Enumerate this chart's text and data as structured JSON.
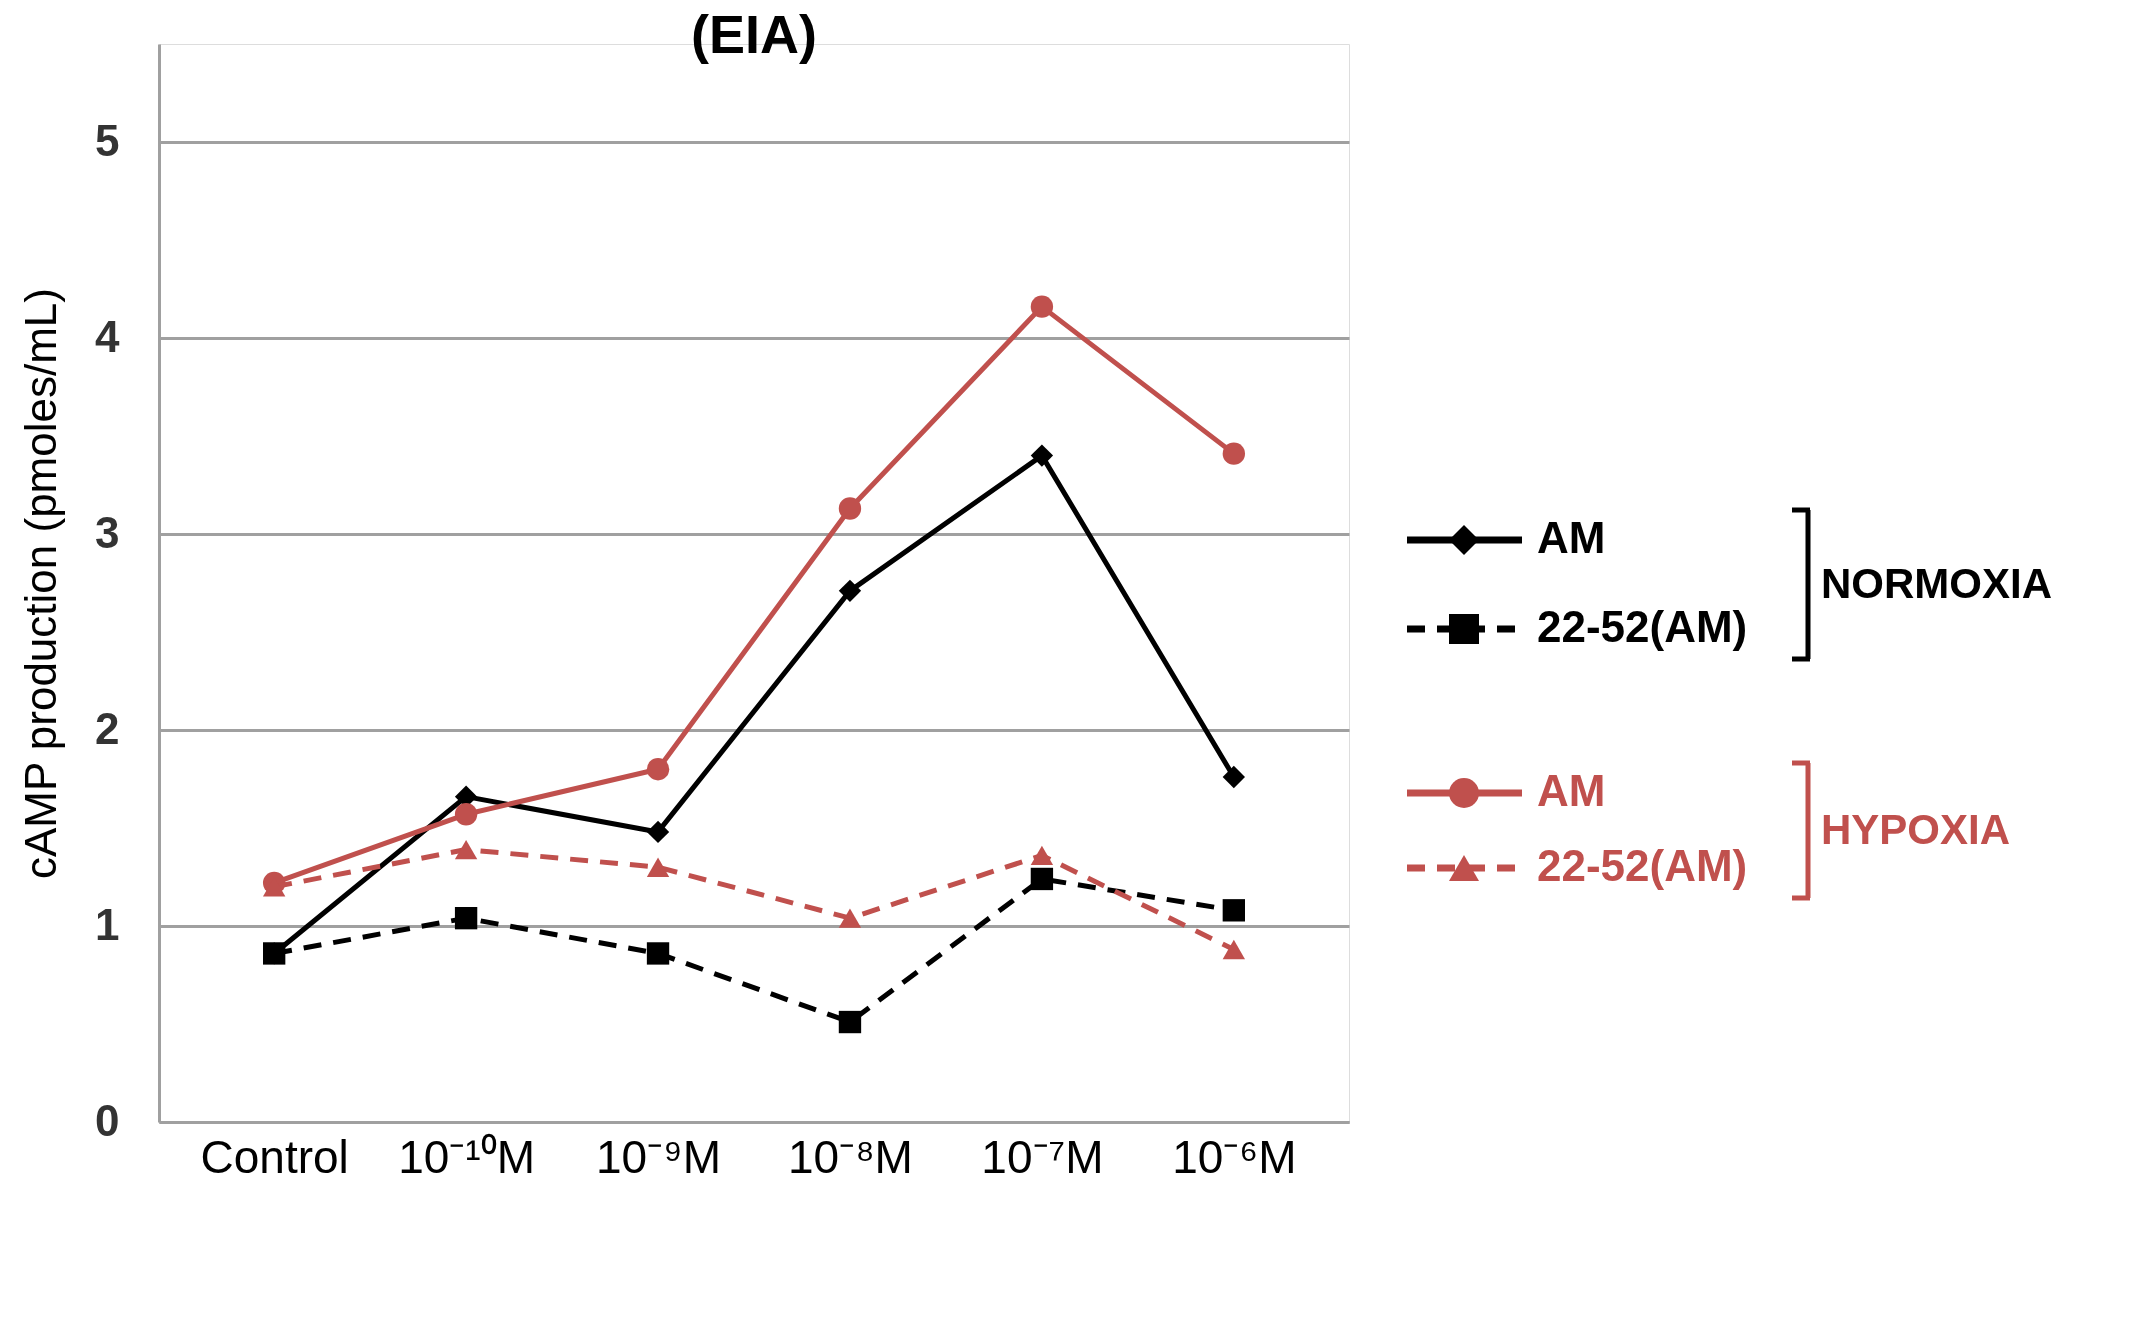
{
  "chart_data": {
    "type": "line",
    "title": "(EIA)",
    "ylabel": "cAMP production (pmoles/mL)",
    "categories": [
      "Control",
      "10⁻¹⁰M",
      "10⁻⁹M",
      "10⁻⁸M",
      "10⁻⁷M",
      "10⁻⁶M"
    ],
    "series": [
      {
        "name": "AM",
        "color": "#000000",
        "marker": "diamond",
        "line_style": "solid",
        "values": [
          0.86,
          1.66,
          1.48,
          2.71,
          3.4,
          1.76
        ]
      },
      {
        "name": "22-52(AM)",
        "color": "#000000",
        "marker": "square",
        "line_style": "dashed",
        "values": [
          0.86,
          1.04,
          0.86,
          0.51,
          1.24,
          1.08
        ]
      },
      {
        "name": "AM",
        "color": "#c0504d",
        "marker": "circle",
        "line_style": "solid",
        "values": [
          1.22,
          1.57,
          1.8,
          3.13,
          4.16,
          3.41
        ]
      },
      {
        "name": "22-52(AM)",
        "color": "#c0504d",
        "marker": "triangle",
        "line_style": "dashed",
        "values": [
          1.2,
          1.39,
          1.3,
          1.04,
          1.36,
          0.88
        ]
      }
    ],
    "annotations": [
      "NORMOXIA",
      "HYPOXIA"
    ],
    "ylim": [
      0,
      5.5
    ],
    "yticks": [
      0,
      1,
      2,
      3,
      4,
      5
    ],
    "grid": "y",
    "legend": "right"
  }
}
